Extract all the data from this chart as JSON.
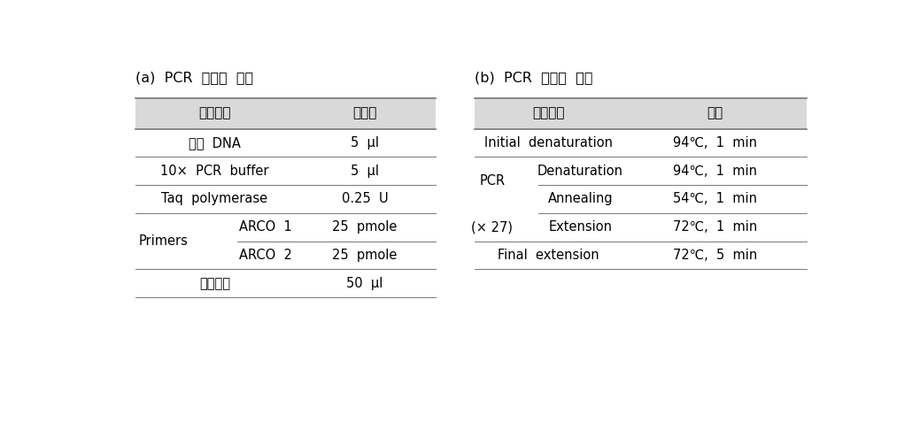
{
  "title_a": "(a)  PCR  반응액  조성",
  "title_b": "(b)  PCR  반응액  조건",
  "header_bg": "#d9d9d9",
  "bg_color": "#ffffff",
  "text_color": "#000000",
  "title_fontsize": 11.5,
  "header_fontsize": 11,
  "cell_fontsize": 10.5,
  "table_a": {
    "headers": [
      "반응물질",
      "첨가량"
    ],
    "rows": [
      {
        "col1": "주형  DNA",
        "col2": "5  μl",
        "sub": false,
        "is_primer_row1": false,
        "is_primer_row2": false
      },
      {
        "col1": "10×  PCR  buffer",
        "col2": "5  μl",
        "sub": false,
        "is_primer_row1": false,
        "is_primer_row2": false
      },
      {
        "col1": "Taq  polymerase",
        "col2": "0.25  U",
        "sub": false,
        "is_primer_row1": false,
        "is_primer_row2": false
      },
      {
        "col1_left": "Primers",
        "col1_right": "ARCO  1",
        "col2": "25  pmole",
        "sub": true,
        "is_primer_row1": true,
        "is_primer_row2": false
      },
      {
        "col1_left": "",
        "col1_right": "ARCO  2",
        "col2": "25  pmole",
        "sub": true,
        "is_primer_row1": false,
        "is_primer_row2": true
      },
      {
        "col1": "최종부피",
        "col2": "50  μl",
        "sub": false,
        "is_primer_row1": false,
        "is_primer_row2": false
      }
    ]
  },
  "table_b": {
    "headers": [
      "반응단계",
      "조건"
    ],
    "rows": [
      {
        "col1": "Initial  denaturation",
        "col2": "94℃,  1  min",
        "sub": false,
        "is_pcr_row1": false,
        "is_pcr_row2": false,
        "is_pcr_row3": false
      },
      {
        "col1_left": "PCR",
        "col1_right": "Denaturation",
        "col2": "94℃,  1  min",
        "sub": true,
        "is_pcr_row1": true,
        "is_pcr_row2": false,
        "is_pcr_row3": false
      },
      {
        "col1_left": "(× 27)",
        "col1_right": "Annealing",
        "col2": "54℃,  1  min",
        "sub": true,
        "is_pcr_row1": false,
        "is_pcr_row2": true,
        "is_pcr_row3": false
      },
      {
        "col1_left": "",
        "col1_right": "Extension",
        "col2": "72℃,  1  min",
        "sub": true,
        "is_pcr_row1": false,
        "is_pcr_row2": false,
        "is_pcr_row3": true
      },
      {
        "col1": "Final  extension",
        "col2": "72℃,  5  min",
        "sub": false,
        "is_pcr_row1": false,
        "is_pcr_row2": false,
        "is_pcr_row3": false
      }
    ]
  }
}
